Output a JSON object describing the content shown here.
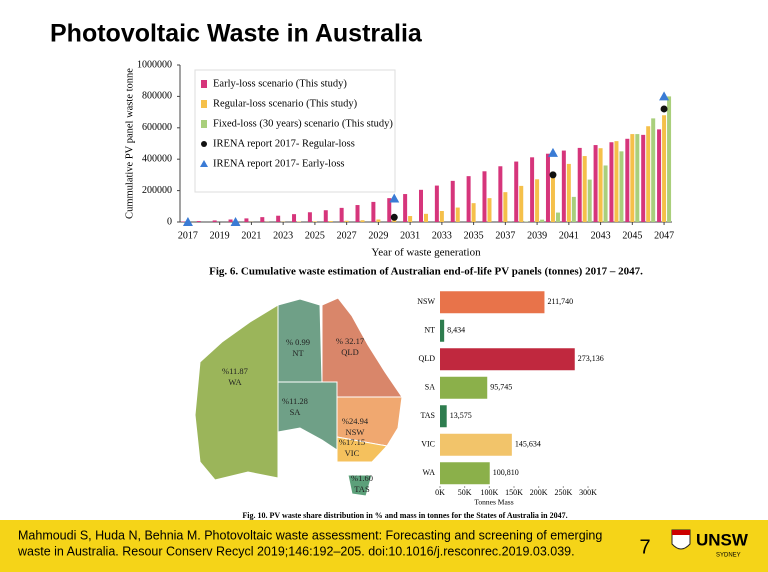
{
  "title": "Photovoltaic Waste in Australia",
  "chart_data": [
    {
      "type": "bar",
      "y_label": "Cummulative PV panel waste tonne",
      "x_label": "Year of waste generation",
      "caption": "Fig. 6. Cumulative waste estimation of Australian end-of-life PV panels (tonnes) 2017 – 2047.",
      "x": [
        2017,
        2018,
        2019,
        2020,
        2021,
        2022,
        2023,
        2024,
        2025,
        2026,
        2027,
        2028,
        2029,
        2030,
        2031,
        2032,
        2033,
        2034,
        2035,
        2036,
        2037,
        2038,
        2039,
        2040,
        2041,
        2042,
        2043,
        2044,
        2045,
        2046,
        2047
      ],
      "xlim": [
        2016.5,
        2047.5
      ],
      "xticks": [
        2017,
        2019,
        2021,
        2023,
        2025,
        2027,
        2029,
        2031,
        2033,
        2035,
        2037,
        2039,
        2041,
        2043,
        2045,
        2047
      ],
      "ylim": [
        0,
        1000000
      ],
      "yticks": [
        0,
        200000,
        400000,
        600000,
        800000,
        1000000
      ],
      "legend": "top-left",
      "series": [
        {
          "name": "Early-loss scenario (This study)",
          "type": "bar",
          "color": "#d6357b",
          "values": [
            3000,
            6000,
            10000,
            16000,
            23000,
            31000,
            40000,
            50000,
            62000,
            75000,
            90000,
            108000,
            128000,
            152000,
            178000,
            205000,
            232000,
            262000,
            292000,
            323000,
            355000,
            385000,
            412000,
            435000,
            455000,
            472000,
            490000,
            508000,
            530000,
            555000,
            590000
          ]
        },
        {
          "name": "Regular-loss scenario (This study)",
          "type": "bar",
          "color": "#f5c04a",
          "values": [
            0,
            0,
            0,
            0,
            1000,
            1500,
            2000,
            3000,
            4000,
            6000,
            8000,
            11000,
            16000,
            25000,
            38000,
            52000,
            70000,
            92000,
            120000,
            152000,
            190000,
            230000,
            272000,
            320000,
            370000,
            420000,
            470000,
            515000,
            560000,
            610000,
            680000
          ]
        },
        {
          "name": "Fixed-loss (30 years) scenario (This study)",
          "type": "bar",
          "color": "#a9cf7c",
          "values": [
            0,
            0,
            0,
            0,
            0,
            0,
            0,
            0,
            0,
            0,
            0,
            0,
            0,
            0,
            0,
            0,
            0,
            0,
            0,
            0,
            1000,
            3000,
            15000,
            60000,
            160000,
            270000,
            360000,
            450000,
            560000,
            660000,
            800000
          ]
        },
        {
          "name": "IRENA report 2017- Regular-loss",
          "type": "scatter",
          "marker": "circle",
          "color": "#111111",
          "x": [
            2030,
            2040,
            2047
          ],
          "values": [
            30000,
            300000,
            720000
          ]
        },
        {
          "name": "IRENA report 2017- Early-loss",
          "type": "scatter",
          "marker": "triangle",
          "color": "#3a7bd5",
          "x": [
            2017,
            2020,
            2030,
            2040,
            2047
          ],
          "values": [
            0,
            0,
            150000,
            440000,
            800000
          ]
        }
      ]
    },
    {
      "type": "hbar",
      "x_label": "Tonnes Mass",
      "caption": "Fig. 10. PV waste share distribution in % and mass in tonnes for the States of Australia in 2047.",
      "categories": [
        "NSW",
        "NT",
        "QLD",
        "SA",
        "TAS",
        "VIC",
        "WA"
      ],
      "values": [
        211740,
        8434,
        273136,
        95745,
        13575,
        145634,
        100810
      ],
      "value_labels": [
        "211,740",
        "8,434",
        "273,136",
        "95,745",
        "13,575",
        "145,634",
        "100,810"
      ],
      "colors": [
        "#e8734a",
        "#2e7d4f",
        "#c0283e",
        "#8bb04a",
        "#2e7d4f",
        "#f2c46a",
        "#8bb04a"
      ],
      "xlim": [
        0,
        300000
      ],
      "xticks": [
        {
          "value": 0,
          "label": "0K"
        },
        {
          "value": 50000,
          "label": "50K"
        },
        {
          "value": 100000,
          "label": "100K"
        },
        {
          "value": 150000,
          "label": "150K"
        },
        {
          "value": 200000,
          "label": "200K"
        },
        {
          "value": 250000,
          "label": "250K"
        },
        {
          "value": 300000,
          "label": "300K"
        }
      ]
    }
  ],
  "map": {
    "regions": [
      {
        "name": "WA",
        "share": "%11.87"
      },
      {
        "name": "NT",
        "share": "% 0.99"
      },
      {
        "name": "QLD",
        "share": "% 32.17"
      },
      {
        "name": "SA",
        "share": "%11.28"
      },
      {
        "name": "NSW",
        "share": "%24.94"
      },
      {
        "name": "VIC",
        "share": "%17.15"
      },
      {
        "name": "TAS",
        "share": "%1.60"
      }
    ]
  },
  "footer": {
    "citation": [
      "Mahmoudi S, Huda N, Behnia M. Photovoltaic waste assessment: Forecasting and screening of emerging",
      "waste in Australia. Resour Conserv Recycl 2019;146:192–205. doi:10.1016/j.resconrec.2019.03.039."
    ],
    "page": "7",
    "logo": "UNSW",
    "logo_sub": "SYDNEY"
  }
}
